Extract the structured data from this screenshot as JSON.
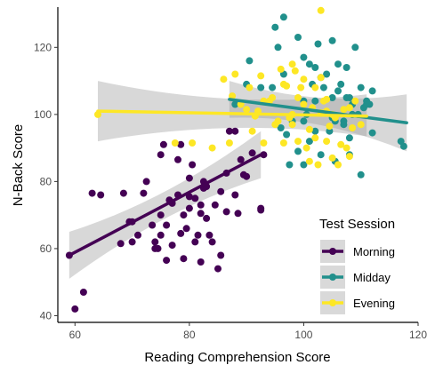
{
  "chart_data": {
    "type": "scatter",
    "xlabel": "Reading Comprehension Score",
    "ylabel": "N-Back Score",
    "xlim": [
      57,
      120
    ],
    "ylim": [
      38,
      132
    ],
    "x_ticks": [
      60,
      80,
      100,
      120
    ],
    "y_ticks": [
      40,
      60,
      80,
      100,
      120
    ],
    "x_tick_labels": [
      "60",
      "80",
      "100",
      "120"
    ],
    "y_tick_labels": [
      "40",
      "60",
      "80",
      "100",
      "120"
    ],
    "grid": false,
    "legend": {
      "title": "Test Session",
      "position": "bottom-right"
    },
    "series": [
      {
        "name": "Morning",
        "color": "#440154",
        "fit": {
          "x": [
            59,
            92.5
          ],
          "y": [
            58,
            88
          ],
          "band_lo_start": 51,
          "band_hi_start": 65,
          "band_lo_end": 81,
          "band_hi_end": 95
        },
        "points": [
          [
            59,
            58
          ],
          [
            60,
            42
          ],
          [
            61.5,
            47
          ],
          [
            63,
            76.5
          ],
          [
            64.5,
            76
          ],
          [
            68,
            61.5
          ],
          [
            68.5,
            76.5
          ],
          [
            69.5,
            68
          ],
          [
            70,
            68
          ],
          [
            70,
            62
          ],
          [
            71,
            64
          ],
          [
            72,
            76.5
          ],
          [
            72.5,
            80
          ],
          [
            73.5,
            67
          ],
          [
            74,
            60
          ],
          [
            74,
            62
          ],
          [
            74.5,
            60
          ],
          [
            75,
            64
          ],
          [
            75,
            70
          ],
          [
            75,
            88
          ],
          [
            75.5,
            91
          ],
          [
            76,
            67
          ],
          [
            76,
            56.5
          ],
          [
            76.5,
            74.5
          ],
          [
            77,
            73.5
          ],
          [
            77,
            61
          ],
          [
            78,
            86.5
          ],
          [
            78,
            76
          ],
          [
            78.5,
            64.5
          ],
          [
            78.5,
            91
          ],
          [
            79,
            70
          ],
          [
            79,
            57
          ],
          [
            79.5,
            66
          ],
          [
            80,
            72
          ],
          [
            80,
            81
          ],
          [
            80,
            75.5
          ],
          [
            80.5,
            85
          ],
          [
            81,
            62
          ],
          [
            81,
            75
          ],
          [
            81.5,
            64
          ],
          [
            82,
            70.5
          ],
          [
            82,
            73
          ],
          [
            82,
            56
          ],
          [
            82.5,
            78
          ],
          [
            82.5,
            80
          ],
          [
            83,
            78.5
          ],
          [
            83,
            69
          ],
          [
            83.5,
            64
          ],
          [
            84,
            62
          ],
          [
            84.5,
            73
          ],
          [
            85,
            54
          ],
          [
            85.5,
            77
          ],
          [
            85.5,
            58
          ],
          [
            86.5,
            71
          ],
          [
            86.5,
            82.5
          ],
          [
            87,
            95
          ],
          [
            88,
            95
          ],
          [
            88,
            76
          ],
          [
            88.5,
            70.5
          ],
          [
            89,
            86.5
          ],
          [
            89.5,
            82
          ],
          [
            90,
            81.5
          ],
          [
            91,
            88.5
          ],
          [
            92.5,
            72
          ],
          [
            92.5,
            71.5
          ],
          [
            93,
            88
          ]
        ]
      },
      {
        "name": "Midday",
        "color": "#21908c",
        "fit": {
          "x": [
            87,
            118
          ],
          "y": [
            104.5,
            97.5
          ],
          "band_lo_start": 99,
          "band_hi_start": 110,
          "band_lo_end": 89,
          "band_hi_end": 106
        },
        "points": [
          [
            88,
            103
          ],
          [
            90,
            109
          ],
          [
            90.5,
            116
          ],
          [
            92.5,
            108
          ],
          [
            94.5,
            108
          ],
          [
            95,
            126
          ],
          [
            95.5,
            120
          ],
          [
            96,
            96
          ],
          [
            96.5,
            112
          ],
          [
            97,
            94
          ],
          [
            97.5,
            85
          ],
          [
            98,
            98
          ],
          [
            99,
            123
          ],
          [
            99,
            89
          ],
          [
            100,
            85
          ],
          [
            100,
            98
          ],
          [
            100,
            104
          ],
          [
            100,
            117
          ],
          [
            101,
            115
          ],
          [
            101,
            92
          ],
          [
            101.5,
            109
          ],
          [
            102,
            114
          ],
          [
            102,
            104
          ],
          [
            102,
            95
          ],
          [
            102.5,
            121
          ],
          [
            103,
            111
          ],
          [
            103,
            88
          ],
          [
            103.5,
            108
          ],
          [
            104,
            112
          ],
          [
            104.5,
            95
          ],
          [
            105,
            105
          ],
          [
            105,
            99
          ],
          [
            105.5,
            98
          ],
          [
            105.5,
            86
          ],
          [
            106,
            107
          ],
          [
            106,
            115
          ],
          [
            106.5,
            109
          ],
          [
            107,
            97
          ],
          [
            107,
            98
          ],
          [
            107.5,
            105
          ],
          [
            107.5,
            114
          ],
          [
            108,
            105
          ],
          [
            108.5,
            100
          ],
          [
            108.5,
            103
          ],
          [
            109,
            120
          ],
          [
            109.5,
            100
          ],
          [
            110,
            108
          ],
          [
            110.5,
            102
          ],
          [
            111,
            103
          ],
          [
            111,
            104
          ],
          [
            111.5,
            103
          ],
          [
            112,
            107
          ],
          [
            112,
            94.5
          ],
          [
            108,
            93
          ],
          [
            110,
            82
          ],
          [
            117,
            92
          ],
          [
            117.5,
            90.5
          ],
          [
            96.5,
            129
          ],
          [
            105,
            122
          ],
          [
            108,
            88
          ],
          [
            100.5,
            100
          ]
        ]
      },
      {
        "name": "Evening",
        "color": "#fde725",
        "fit": {
          "x": [
            64,
            111
          ],
          "y": [
            101,
            99.5
          ],
          "band_lo_start": 92,
          "band_hi_start": 110,
          "band_lo_end": 93.5,
          "band_hi_end": 106
        },
        "points": [
          [
            64,
            100
          ],
          [
            77.5,
            91.5
          ],
          [
            80.5,
            91.5
          ],
          [
            84,
            90
          ],
          [
            86,
            110.5
          ],
          [
            87,
            91.5
          ],
          [
            87.5,
            105.5
          ],
          [
            88,
            112
          ],
          [
            89,
            103
          ],
          [
            90,
            101.5
          ],
          [
            90.5,
            108
          ],
          [
            91,
            95
          ],
          [
            91.5,
            99.5
          ],
          [
            92,
            101
          ],
          [
            92.5,
            111.5
          ],
          [
            93,
            104
          ],
          [
            93,
            91.5
          ],
          [
            94,
            104
          ],
          [
            94.5,
            105
          ],
          [
            95,
            97
          ],
          [
            95.5,
            98
          ],
          [
            96,
            113.5
          ],
          [
            96.5,
            109
          ],
          [
            97,
            108.5
          ],
          [
            97.5,
            99
          ],
          [
            98,
            100
          ],
          [
            98,
            115
          ],
          [
            98.5,
            113
          ],
          [
            99,
            105
          ],
          [
            99,
            92
          ],
          [
            99.5,
            108
          ],
          [
            100,
            103
          ],
          [
            100,
            110.5
          ],
          [
            100.5,
            90
          ],
          [
            101,
            86
          ],
          [
            101,
            95.5
          ],
          [
            101.5,
            102
          ],
          [
            102,
            108
          ],
          [
            102,
            93
          ],
          [
            102.5,
            85
          ],
          [
            103,
            100.5
          ],
          [
            103,
            111
          ],
          [
            103.5,
            104
          ],
          [
            104,
            101
          ],
          [
            104,
            92
          ],
          [
            104.5,
            96.5
          ],
          [
            105,
            87
          ],
          [
            105,
            100
          ],
          [
            105.5,
            99
          ],
          [
            106,
            85
          ],
          [
            106.5,
            91
          ],
          [
            107,
            101.5
          ],
          [
            107.5,
            90
          ],
          [
            108,
            102
          ],
          [
            108.5,
            96
          ],
          [
            109,
            104
          ],
          [
            110,
            97
          ],
          [
            96.5,
            91.5
          ],
          [
            103,
            131
          ],
          [
            108,
            87.5
          ],
          [
            104,
            104.5
          ],
          [
            98,
            97
          ]
        ]
      }
    ]
  }
}
